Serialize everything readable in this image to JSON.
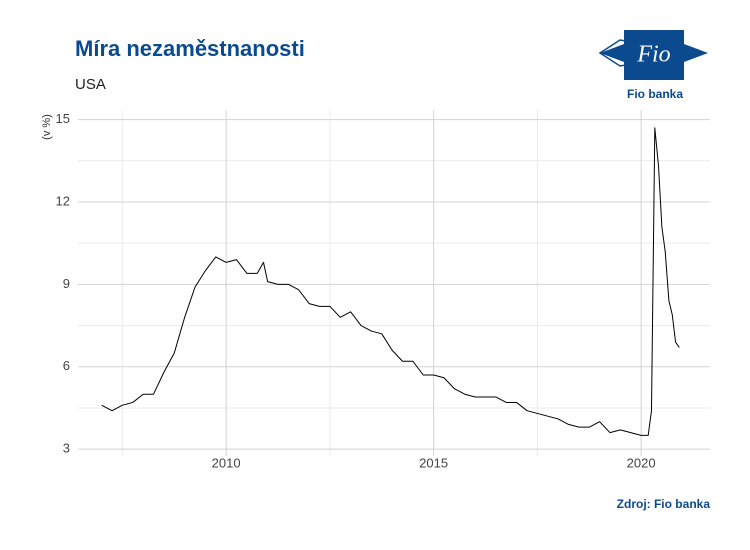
{
  "chart_data": {
    "type": "line",
    "title": "Míra nezaměstnanosti",
    "subtitle": "USA",
    "y_label": "(v %)",
    "source": "Zdroj: Fio banka",
    "series": [
      {
        "name": "USA",
        "color": "#000000",
        "x": [
          2007.0,
          2007.25,
          2007.5,
          2007.75,
          2008.0,
          2008.25,
          2008.5,
          2008.75,
          2009.0,
          2009.25,
          2009.5,
          2009.75,
          2010.0,
          2010.25,
          2010.5,
          2010.75,
          2010.9,
          2011.0,
          2011.25,
          2011.5,
          2011.75,
          2012.0,
          2012.25,
          2012.5,
          2012.75,
          2013.0,
          2013.25,
          2013.5,
          2013.75,
          2014.0,
          2014.25,
          2014.5,
          2014.75,
          2015.0,
          2015.25,
          2015.5,
          2015.75,
          2016.0,
          2016.25,
          2016.5,
          2016.75,
          2017.0,
          2017.25,
          2017.5,
          2017.75,
          2018.0,
          2018.25,
          2018.5,
          2018.75,
          2019.0,
          2019.25,
          2019.5,
          2019.75,
          2020.0,
          2020.17,
          2020.25,
          2020.33,
          2020.42,
          2020.5,
          2020.58,
          2020.67,
          2020.75,
          2020.83,
          2020.92
        ],
        "values": [
          4.6,
          4.4,
          4.6,
          4.7,
          5.0,
          5.0,
          5.8,
          6.5,
          7.8,
          8.9,
          9.5,
          10.0,
          9.8,
          9.9,
          9.4,
          9.4,
          9.8,
          9.1,
          9.0,
          9.0,
          8.8,
          8.3,
          8.2,
          8.2,
          7.8,
          8.0,
          7.5,
          7.3,
          7.2,
          6.6,
          6.2,
          6.2,
          5.7,
          5.7,
          5.6,
          5.2,
          5.0,
          4.9,
          4.9,
          4.9,
          4.7,
          4.7,
          4.4,
          4.3,
          4.2,
          4.1,
          3.9,
          3.8,
          3.8,
          4.0,
          3.6,
          3.7,
          3.6,
          3.5,
          3.5,
          4.4,
          14.7,
          13.3,
          11.1,
          10.2,
          8.4,
          7.9,
          6.9,
          6.7
        ]
      }
    ],
    "xlim": [
      2006.43,
      2021.66
    ],
    "xticks": [
      2010,
      2015,
      2020
    ],
    "ylim": [
      2.75,
      15.35
    ],
    "yticks": [
      3,
      6,
      9,
      12,
      15
    ],
    "grid": true
  },
  "logo": {
    "mark": "Fio",
    "name": "Fio banka"
  }
}
